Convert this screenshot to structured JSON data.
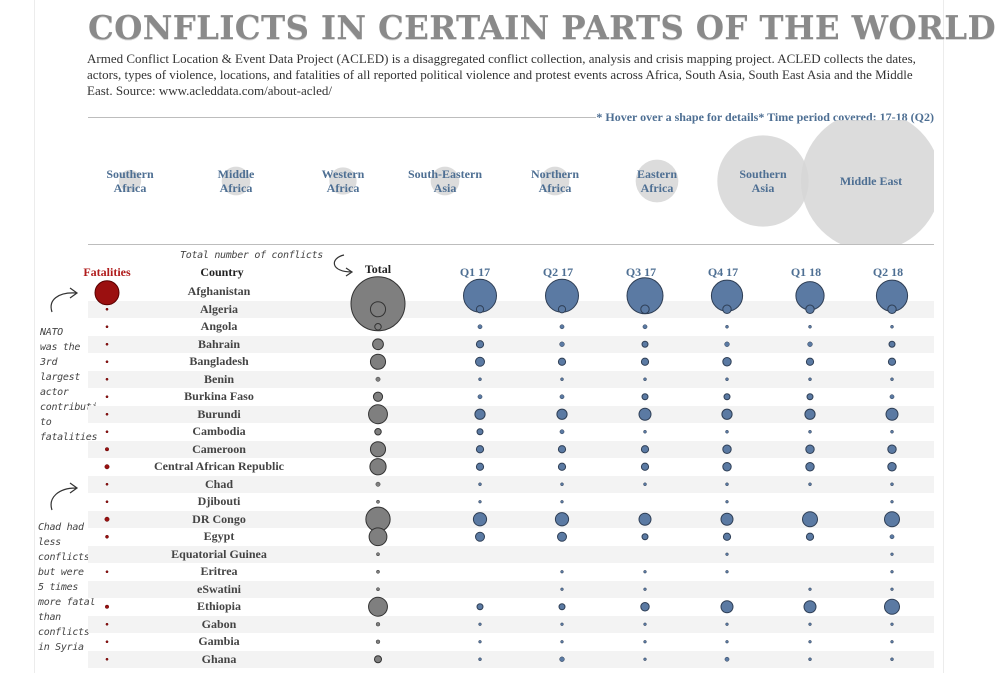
{
  "header": {
    "title": "CONFLICTS IN CERTAIN PARTS OF THE WORLD",
    "description": "Armed Conflict Location & Event Data Project (ACLED) is a disaggregated conflict collection, analysis and crisis mapping project. ACLED collects the dates, actors, types of violence, locations, and fatalities of all reported political violence and protest events across Africa, South Asia, South East Asia and the Middle East. Source: www.acleddata.com/about-acled/",
    "hint": "* Hover over a shape for details*  Time period covered: 17-18 (Q2)"
  },
  "annotations": {
    "total_note": "Total number of conflicts",
    "nato_note": [
      "NATO",
      "was the",
      "3rd",
      "largest",
      "actor",
      "contributi",
      "to",
      "fatalities"
    ],
    "chad_note": [
      "Chad had",
      "less",
      "conflicts",
      "but were",
      "5 times",
      "more fatal",
      "than",
      "conflicts",
      "in Syria"
    ]
  },
  "colors": {
    "fatal": "#9b1010",
    "quarter": "#5b7aa3",
    "total": "#7f7f7f",
    "region": "#d6d6d6",
    "header_blue": "#4e6f93",
    "header_red": "#b01c1c"
  },
  "chart_data": [
    {
      "type": "bubble",
      "title": "",
      "categories": [
        "Southern Africa",
        "Middle Africa",
        "Western Africa",
        "South-Eastern Asia",
        "Northern Africa",
        "Eastern Africa",
        "Southern Asia",
        "Middle East"
      ],
      "relative_size": [
        0.08,
        0.13,
        0.12,
        0.13,
        0.13,
        0.24,
        0.62,
        1.0
      ]
    },
    {
      "type": "bubble_table",
      "title": "",
      "columns": [
        "Fatalities",
        "Country",
        "Total",
        "Q1 17",
        "Q2 17",
        "Q3 17",
        "Q4 17",
        "Q1 18",
        "Q2 18"
      ],
      "rows": [
        {
          "country": "Afghanistan",
          "fatalities": 1.0,
          "total": 1.0,
          "q": [
            0.55,
            0.55,
            0.6,
            0.52,
            0.47,
            0.52
          ]
        },
        {
          "country": "Algeria",
          "fatalities": 0.05,
          "total": 0.28,
          "q": [
            0.12,
            0.12,
            0.14,
            0.14,
            0.14,
            0.14
          ]
        },
        {
          "country": "Angola",
          "fatalities": 0.05,
          "total": 0.12,
          "q": [
            0.07,
            0.07,
            0.07,
            0.05,
            0.05,
            0.05
          ]
        },
        {
          "country": "Bahrain",
          "fatalities": 0.05,
          "total": 0.2,
          "q": [
            0.12,
            0.08,
            0.1,
            0.08,
            0.08,
            0.1
          ]
        },
        {
          "country": "Bangladesh",
          "fatalities": 0.05,
          "total": 0.28,
          "q": [
            0.15,
            0.12,
            0.12,
            0.14,
            0.12,
            0.12
          ]
        },
        {
          "country": "Benin",
          "fatalities": 0.05,
          "total": 0.08,
          "q": [
            0.05,
            0.05,
            0.05,
            0.05,
            0.05,
            0.05
          ]
        },
        {
          "country": "Burkina Faso",
          "fatalities": 0.05,
          "total": 0.17,
          "q": [
            0.07,
            0.07,
            0.1,
            0.1,
            0.1,
            0.07
          ]
        },
        {
          "country": "Burundi",
          "fatalities": 0.05,
          "total": 0.35,
          "q": [
            0.17,
            0.17,
            0.2,
            0.17,
            0.17,
            0.2
          ]
        },
        {
          "country": "Cambodia",
          "fatalities": 0.05,
          "total": 0.12,
          "q": [
            0.1,
            0.07,
            0.05,
            0.05,
            0.05,
            0.05
          ]
        },
        {
          "country": "Cameroon",
          "fatalities": 0.08,
          "total": 0.28,
          "q": [
            0.12,
            0.12,
            0.12,
            0.14,
            0.14,
            0.14
          ]
        },
        {
          "country": "Central African Republic",
          "fatalities": 0.1,
          "total": 0.3,
          "q": [
            0.12,
            0.12,
            0.12,
            0.14,
            0.14,
            0.14
          ]
        },
        {
          "country": "Chad",
          "fatalities": 0.05,
          "total": 0.08,
          "q": [
            0.05,
            0.05,
            0.05,
            0.05,
            0.05,
            0.05
          ]
        },
        {
          "country": "Djibouti",
          "fatalities": 0.05,
          "total": 0.05,
          "q": [
            0.04,
            0.04,
            0.0,
            0.04,
            0.0,
            0.04
          ]
        },
        {
          "country": "DR Congo",
          "fatalities": 0.1,
          "total": 0.45,
          "q": [
            0.22,
            0.22,
            0.2,
            0.2,
            0.25,
            0.25
          ]
        },
        {
          "country": "Egypt",
          "fatalities": 0.07,
          "total": 0.33,
          "q": [
            0.15,
            0.15,
            0.1,
            0.12,
            0.12,
            0.07
          ]
        },
        {
          "country": "Equatorial Guinea",
          "fatalities": 0.0,
          "total": 0.05,
          "q": [
            0.0,
            0.0,
            0.0,
            0.04,
            0.0,
            0.04
          ]
        },
        {
          "country": "Eritrea",
          "fatalities": 0.05,
          "total": 0.05,
          "q": [
            0.0,
            0.04,
            0.04,
            0.04,
            0.0,
            0.04
          ]
        },
        {
          "country": "eSwatini",
          "fatalities": 0.0,
          "total": 0.05,
          "q": [
            0.0,
            0.04,
            0.04,
            0.0,
            0.04,
            0.04
          ]
        },
        {
          "country": "Ethiopia",
          "fatalities": 0.08,
          "total": 0.35,
          "q": [
            0.1,
            0.1,
            0.14,
            0.2,
            0.2,
            0.25
          ]
        },
        {
          "country": "Gabon",
          "fatalities": 0.05,
          "total": 0.07,
          "q": [
            0.04,
            0.04,
            0.04,
            0.04,
            0.04,
            0.04
          ]
        },
        {
          "country": "Gambia",
          "fatalities": 0.05,
          "total": 0.07,
          "q": [
            0.04,
            0.04,
            0.04,
            0.04,
            0.04,
            0.04
          ]
        },
        {
          "country": "Ghana",
          "fatalities": 0.05,
          "total": 0.13,
          "q": [
            0.05,
            0.08,
            0.04,
            0.07,
            0.05,
            0.05
          ]
        }
      ]
    }
  ]
}
